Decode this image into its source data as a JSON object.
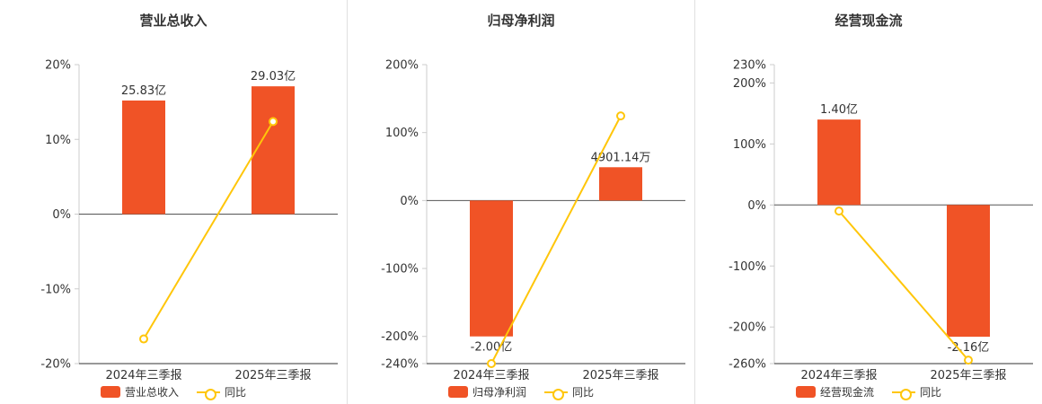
{
  "colors": {
    "bar": "#f05326",
    "line": "#ffc60a",
    "axis_line": "#cccccc",
    "zero_line": "#555555",
    "baseline": "#333333",
    "text": "#333333"
  },
  "chart_data": [
    {
      "type": "bar+line",
      "title": "营业总收入",
      "categories": [
        "2024年三季报",
        "2025年三季报"
      ],
      "bar_series": {
        "name": "营业总收入",
        "value_labels": [
          "25.83亿",
          "29.03亿"
        ],
        "display_pct": [
          15.2,
          17.1
        ]
      },
      "line_series": {
        "name": "同比",
        "values_pct": [
          -16.7,
          12.39
        ]
      },
      "yticks_pct": [
        20,
        10,
        0,
        -10,
        -20
      ],
      "ylim_pct": [
        -20,
        20
      ],
      "grid": false,
      "legend_position": "bottom"
    },
    {
      "type": "bar+line",
      "title": "归母净利润",
      "categories": [
        "2024年三季报",
        "2025年三季报"
      ],
      "bar_series": {
        "name": "归母净利润",
        "value_labels": [
          "-2.00亿",
          "4901.14万"
        ],
        "display_pct": [
          -200,
          49
        ]
      },
      "line_series": {
        "name": "同比",
        "values_pct": [
          -240,
          124.5
        ]
      },
      "yticks_pct": [
        200,
        100,
        0,
        -100,
        -200,
        -240
      ],
      "ylim_pct": [
        -240,
        200
      ],
      "grid": false,
      "legend_position": "bottom"
    },
    {
      "type": "bar+line",
      "title": "经营现金流",
      "categories": [
        "2024年三季报",
        "2025年三季报"
      ],
      "bar_series": {
        "name": "经营现金流",
        "value_labels": [
          "1.40亿",
          "-2.16亿"
        ],
        "display_pct": [
          140,
          -216
        ]
      },
      "line_series": {
        "name": "同比",
        "values_pct": [
          -10,
          -254.3
        ]
      },
      "yticks_pct": [
        230,
        200,
        100,
        0,
        -100,
        -200,
        -260
      ],
      "ylim_pct": [
        -260,
        230
      ],
      "grid": false,
      "legend_position": "bottom"
    }
  ]
}
